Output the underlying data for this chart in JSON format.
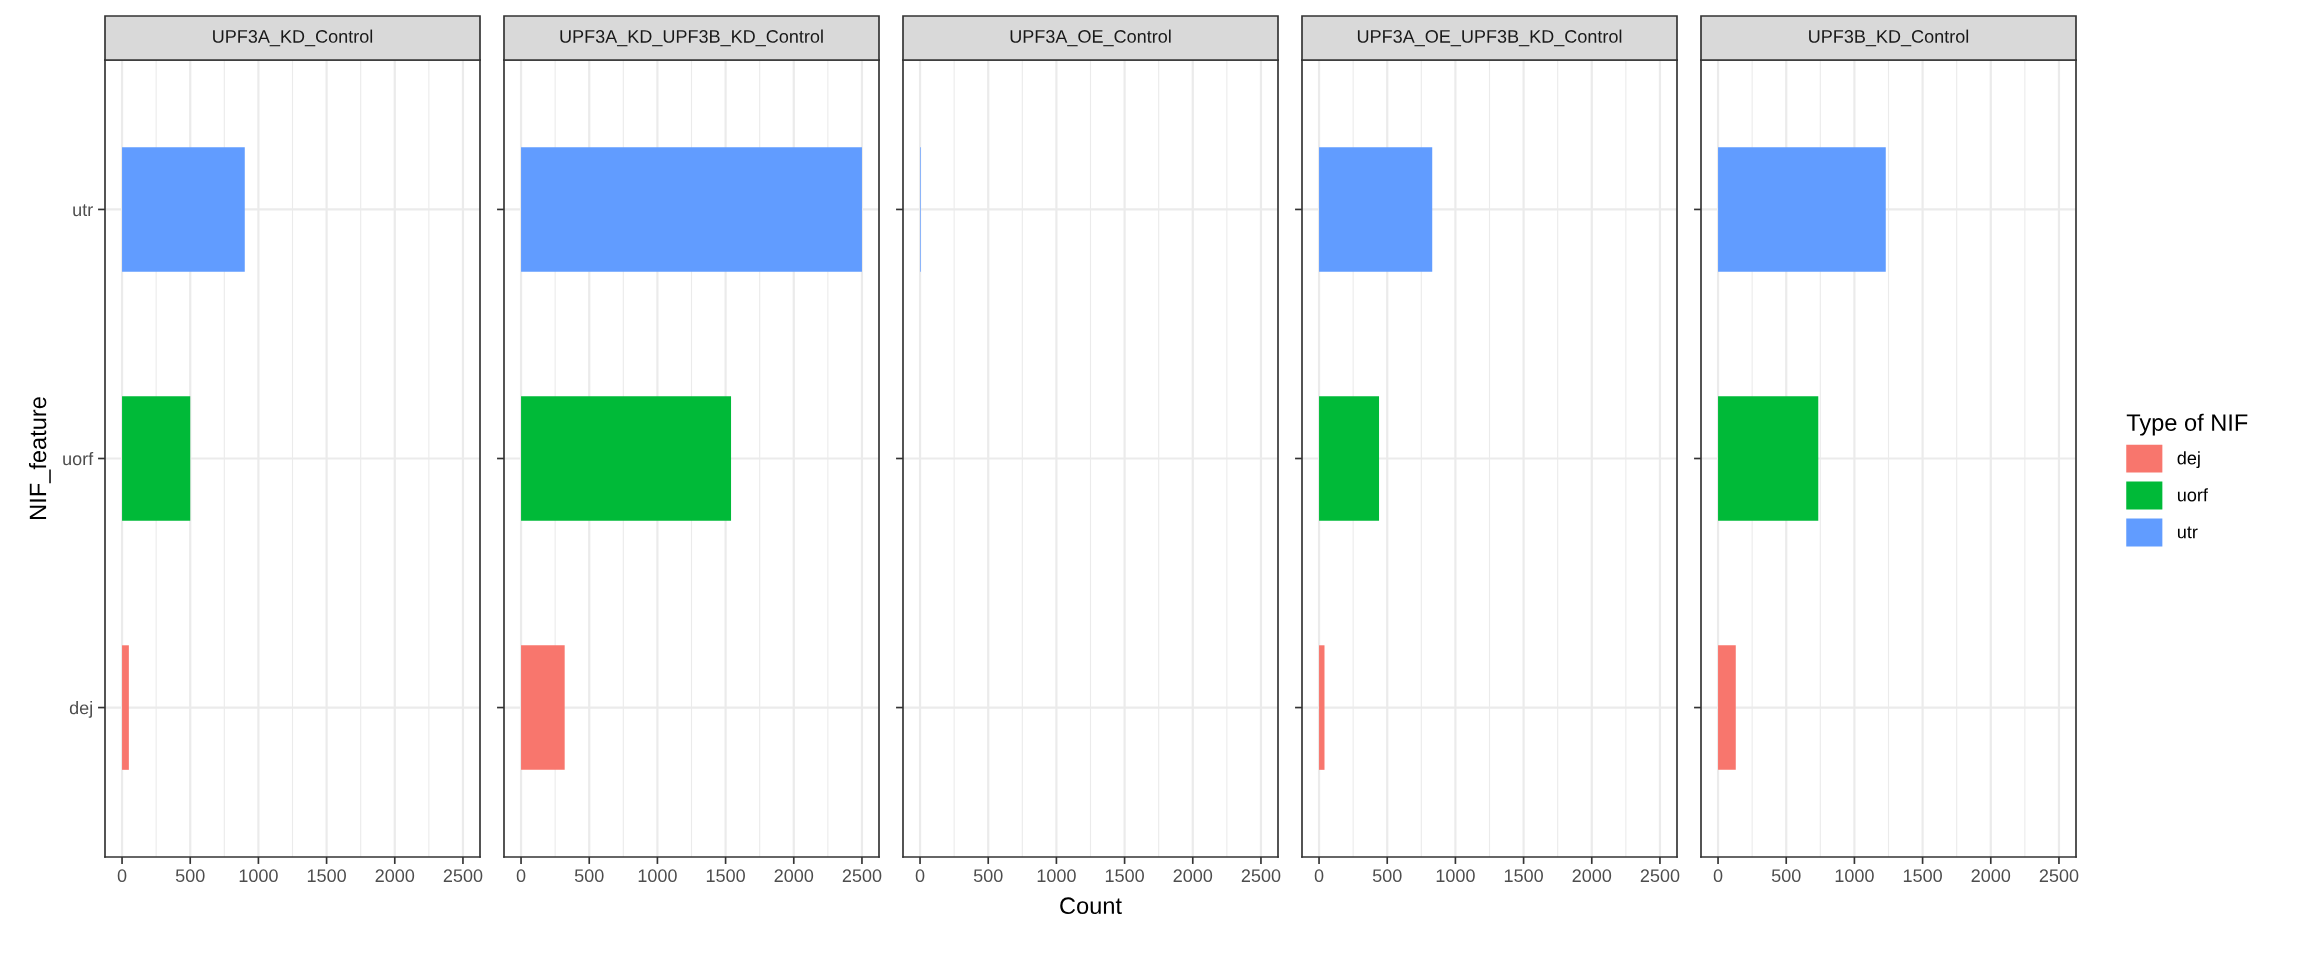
{
  "chart_data": [
    {
      "type": "bar",
      "orientation": "horizontal",
      "title": "UPF3A_KD_Control",
      "ylabel": "NIF_feature",
      "categories": [
        "utr",
        "uorf",
        "dej"
      ],
      "xlim": [
        -125,
        2625
      ],
      "xticks": [
        0,
        500,
        1000,
        1500,
        2000,
        2500
      ],
      "grid": true,
      "legend": "right",
      "legend_title": "Type of NIF",
      "series": [
        {
          "name": "dej",
          "color": "#f8766d",
          "values": [
            null,
            null,
            50
          ]
        },
        {
          "name": "uorf",
          "color": "#00ba38",
          "values": [
            null,
            500,
            null
          ]
        },
        {
          "name": "utr",
          "color": "#619cff",
          "values": [
            900,
            null,
            null
          ]
        }
      ]
    },
    {
      "type": "bar",
      "orientation": "horizontal",
      "title": "UPF3A_KD_UPF3B_KD_Control",
      "xlim": [
        -125,
        2625
      ],
      "xticks": [
        0,
        500,
        1000,
        1500,
        2000,
        2500
      ],
      "grid": true,
      "tick_labels": "x",
      "series": [
        {
          "color": "#f8766d",
          "values": [
            null,
            null,
            320
          ]
        },
        {
          "color": "#00ba38",
          "values": [
            null,
            1540,
            null
          ]
        },
        {
          "color": "#619cff",
          "values": [
            2500,
            null,
            null
          ]
        }
      ]
    },
    {
      "type": "bar",
      "orientation": "horizontal",
      "title": "UPF3A_OE_Control",
      "xlabel": "Count",
      "xlim": [
        -125,
        2625
      ],
      "xticks": [
        0,
        500,
        1000,
        1500,
        2000,
        2500
      ],
      "grid": true,
      "tick_labels": "x",
      "series": [
        {
          "color": "#f8766d",
          "values": [
            null,
            null,
            0
          ]
        },
        {
          "color": "#00ba38",
          "values": [
            null,
            0,
            null
          ]
        },
        {
          "color": "#619cff",
          "values": [
            5,
            null,
            null
          ]
        }
      ]
    },
    {
      "type": "bar",
      "orientation": "horizontal",
      "title": "UPF3A_OE_UPF3B_KD_Control",
      "xlim": [
        -125,
        2625
      ],
      "xticks": [
        0,
        500,
        1000,
        1500,
        2000,
        2500
      ],
      "grid": true,
      "tick_labels": "x",
      "series": [
        {
          "color": "#f8766d",
          "values": [
            null,
            null,
            40
          ]
        },
        {
          "color": "#00ba38",
          "values": [
            null,
            440,
            null
          ]
        },
        {
          "color": "#619cff",
          "values": [
            830,
            null,
            null
          ]
        }
      ]
    },
    {
      "type": "bar",
      "orientation": "horizontal",
      "title": "UPF3B_KD_Control",
      "xlim": [
        -125,
        2625
      ],
      "xticks": [
        0,
        500,
        1000,
        1500,
        2000,
        2500
      ],
      "grid": true,
      "tick_labels": "x",
      "series": [
        {
          "color": "#f8766d",
          "values": [
            null,
            null,
            130
          ]
        },
        {
          "color": "#00ba38",
          "values": [
            null,
            735,
            null
          ]
        },
        {
          "color": "#619cff",
          "values": [
            1230,
            null,
            null
          ]
        }
      ]
    }
  ]
}
